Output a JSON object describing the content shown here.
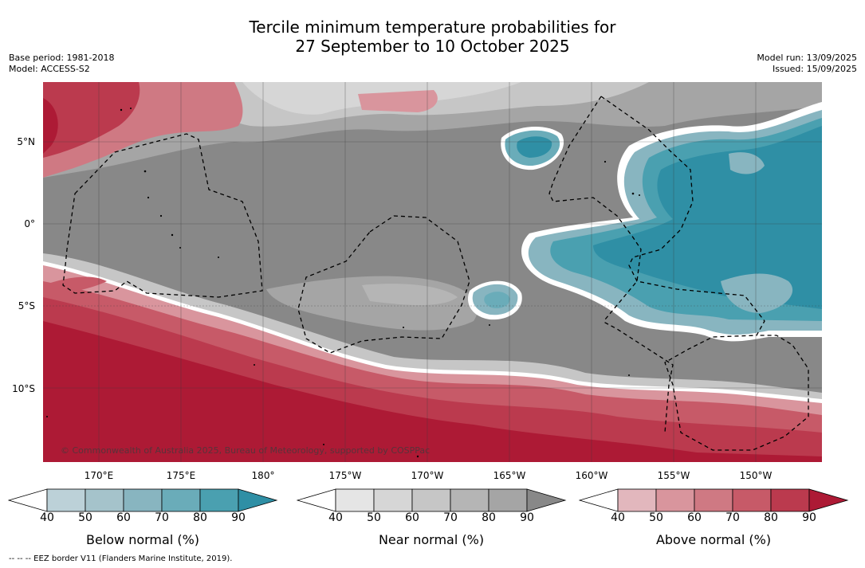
{
  "title_line1": "Tercile minimum temperature probabilities for",
  "title_line2": "27 September to 10 October 2025",
  "meta_left": {
    "base_period": "Base period: 1981-2018",
    "model": "Model: ACCESS-S2"
  },
  "meta_right": {
    "model_run": "Model run: 13/09/2025",
    "issued": "Issued: 15/09/2025"
  },
  "lat_labels": [
    "5°N",
    "0°",
    "5°S",
    "10°S"
  ],
  "lon_labels": [
    "170°E",
    "175°E",
    "180°",
    "175°W",
    "170°W",
    "165°W",
    "160°W",
    "155°W",
    "150°W"
  ],
  "copyright": "© Commonwealth of Australia 2025, Bureau of Meteorology, supported by COSPPac",
  "legend": {
    "below": {
      "label": "Below normal (%)",
      "ticks": [
        "40",
        "50",
        "60",
        "70",
        "80",
        "90"
      ],
      "colors": [
        "#bcd1d8",
        "#a5c3cb",
        "#88b5c0",
        "#6aacb9",
        "#4aa0b0",
        "#2f8fa5"
      ]
    },
    "near": {
      "label": "Near normal (%)",
      "ticks": [
        "40",
        "50",
        "60",
        "70",
        "80",
        "90"
      ],
      "colors": [
        "#e5e5e5",
        "#d6d6d6",
        "#c6c6c6",
        "#b5b5b5",
        "#a5a5a5",
        "#888888"
      ]
    },
    "above": {
      "label": "Above normal (%)",
      "ticks": [
        "40",
        "50",
        "60",
        "70",
        "80",
        "90"
      ],
      "colors": [
        "#e2b7bd",
        "#d9959d",
        "#cf7983",
        "#c75a68",
        "#bb3a4e",
        "#ad1a35"
      ]
    }
  },
  "footnote": "--  --  -- EEZ border V11 (Flanders Marine Institute, 2019)."
}
